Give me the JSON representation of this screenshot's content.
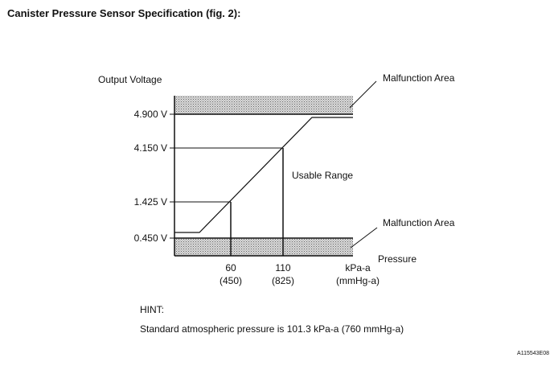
{
  "title": "Canister Pressure Sensor Specification (fig. 2):",
  "chart_data": {
    "type": "line",
    "ylabel": "Output Voltage",
    "xlabel": "Pressure",
    "x_unit": [
      "kPa-a",
      "(mmHg-a)"
    ],
    "y_ticks": [
      "4.900 V",
      "4.150 V",
      "1.425 V",
      "0.450 V"
    ],
    "x_ticks": [
      {
        "value": "60",
        "sub": "(450)"
      },
      {
        "value": "110",
        "sub": "(825)"
      }
    ],
    "usable_range_label": "Usable Range",
    "malfunction_label": "Malfunction Area",
    "series": [
      {
        "x": [
          60,
          110
        ],
        "y": [
          1.425,
          4.15
        ]
      }
    ]
  },
  "hint": {
    "label": "HINT:",
    "text": "Standard atmospheric pressure is 101.3 kPa-a (760 mmHg-a)"
  },
  "figure_code": "A115543E08"
}
